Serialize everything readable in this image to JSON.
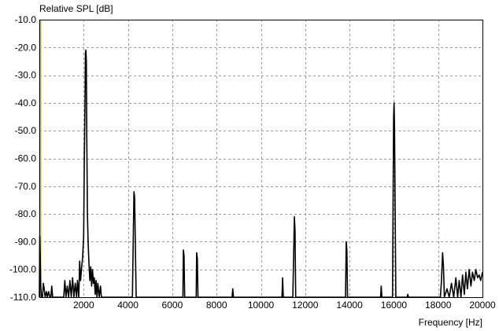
{
  "chart_data": {
    "type": "line",
    "ylabel": "Relative SPL [dB]",
    "xlabel": "Frequency  [Hz]",
    "xlim": [
      0,
      20000
    ],
    "ylim": [
      -110,
      -10
    ],
    "x_ticks": [
      2000,
      4000,
      6000,
      8000,
      10000,
      12000,
      14000,
      16000,
      18000,
      20000
    ],
    "x_tick_labels": [
      "2000",
      "4000",
      "6000",
      "8000",
      "10000",
      "12000",
      "14000",
      "16000",
      "18000",
      "20000"
    ],
    "y_ticks": [
      -10,
      -20,
      -30,
      -40,
      -50,
      -60,
      -70,
      -80,
      -90,
      -100,
      -110
    ],
    "y_tick_labels": [
      "-10.0",
      "-20.0",
      "-30.0",
      "-40.0",
      "-50.0",
      "-60.0",
      "-70.0",
      "-80.0",
      "-90.0",
      "-100.0",
      "-110.0"
    ],
    "grid": true,
    "colors": {
      "trace": "#000000",
      "axis_highlight": "#c8c832",
      "grid": "#9a9a9a"
    },
    "series": [
      {
        "points": [
          [
            0,
            -110
          ],
          [
            20,
            -88
          ],
          [
            40,
            -96
          ],
          [
            60,
            -105
          ],
          [
            90,
            -110
          ],
          [
            140,
            -110
          ],
          [
            180,
            -105
          ],
          [
            220,
            -107
          ],
          [
            260,
            -110
          ],
          [
            320,
            -108
          ],
          [
            360,
            -110
          ],
          [
            420,
            -108
          ],
          [
            470,
            -110
          ],
          [
            520,
            -110
          ],
          [
            560,
            -106
          ],
          [
            600,
            -110
          ],
          [
            1100,
            -110
          ],
          [
            1150,
            -104
          ],
          [
            1200,
            -110
          ],
          [
            1260,
            -106
          ],
          [
            1320,
            -110
          ],
          [
            1380,
            -104
          ],
          [
            1440,
            -110
          ],
          [
            1500,
            -103
          ],
          [
            1560,
            -110
          ],
          [
            1620,
            -105
          ],
          [
            1680,
            -110
          ],
          [
            1720,
            -104
          ],
          [
            1780,
            -110
          ],
          [
            1820,
            -97
          ],
          [
            1860,
            -104
          ],
          [
            1900,
            -100
          ],
          [
            1950,
            -96
          ],
          [
            2000,
            -88
          ],
          [
            2030,
            -60
          ],
          [
            2060,
            -40
          ],
          [
            2080,
            -22
          ],
          [
            2100,
            -21
          ],
          [
            2120,
            -25
          ],
          [
            2140,
            -52
          ],
          [
            2170,
            -80
          ],
          [
            2200,
            -90
          ],
          [
            2240,
            -98
          ],
          [
            2280,
            -104
          ],
          [
            2320,
            -99
          ],
          [
            2360,
            -106
          ],
          [
            2400,
            -100
          ],
          [
            2440,
            -105
          ],
          [
            2480,
            -103
          ],
          [
            2520,
            -109
          ],
          [
            2560,
            -104
          ],
          [
            2600,
            -110
          ],
          [
            2640,
            -105
          ],
          [
            2700,
            -110
          ],
          [
            2760,
            -106
          ],
          [
            2800,
            -110
          ],
          [
            3200,
            -110
          ],
          [
            4200,
            -110
          ],
          [
            4240,
            -88
          ],
          [
            4270,
            -72
          ],
          [
            4300,
            -74
          ],
          [
            4330,
            -90
          ],
          [
            4370,
            -110
          ],
          [
            6480,
            -110
          ],
          [
            6500,
            -93
          ],
          [
            6530,
            -95
          ],
          [
            6560,
            -110
          ],
          [
            7080,
            -110
          ],
          [
            7100,
            -94
          ],
          [
            7130,
            -96
          ],
          [
            7160,
            -110
          ],
          [
            8700,
            -110
          ],
          [
            8730,
            -107
          ],
          [
            8760,
            -110
          ],
          [
            10950,
            -110
          ],
          [
            10980,
            -103
          ],
          [
            11010,
            -110
          ],
          [
            11440,
            -110
          ],
          [
            11480,
            -94
          ],
          [
            11510,
            -81
          ],
          [
            11540,
            -86
          ],
          [
            11570,
            -110
          ],
          [
            13820,
            -110
          ],
          [
            13850,
            -90
          ],
          [
            13880,
            -93
          ],
          [
            13910,
            -110
          ],
          [
            15400,
            -110
          ],
          [
            15430,
            -106
          ],
          [
            15460,
            -110
          ],
          [
            15940,
            -110
          ],
          [
            15970,
            -70
          ],
          [
            15990,
            -45
          ],
          [
            16010,
            -40
          ],
          [
            16030,
            -48
          ],
          [
            16060,
            -80
          ],
          [
            16090,
            -110
          ],
          [
            16600,
            -110
          ],
          [
            16630,
            -109
          ],
          [
            16660,
            -110
          ],
          [
            18100,
            -110
          ],
          [
            18150,
            -104
          ],
          [
            18200,
            -94
          ],
          [
            18240,
            -99
          ],
          [
            18280,
            -110
          ],
          [
            18400,
            -107
          ],
          [
            18500,
            -110
          ],
          [
            18600,
            -105
          ],
          [
            18700,
            -110
          ],
          [
            18800,
            -103
          ],
          [
            18880,
            -110
          ],
          [
            18950,
            -104
          ],
          [
            19030,
            -110
          ],
          [
            19100,
            -102
          ],
          [
            19180,
            -109
          ],
          [
            19250,
            -101
          ],
          [
            19320,
            -107
          ],
          [
            19400,
            -100
          ],
          [
            19480,
            -106
          ],
          [
            19550,
            -101
          ],
          [
            19630,
            -104
          ],
          [
            19700,
            -100
          ],
          [
            19780,
            -103
          ],
          [
            19850,
            -102
          ],
          [
            19920,
            -104
          ],
          [
            20000,
            -101
          ]
        ]
      }
    ]
  }
}
